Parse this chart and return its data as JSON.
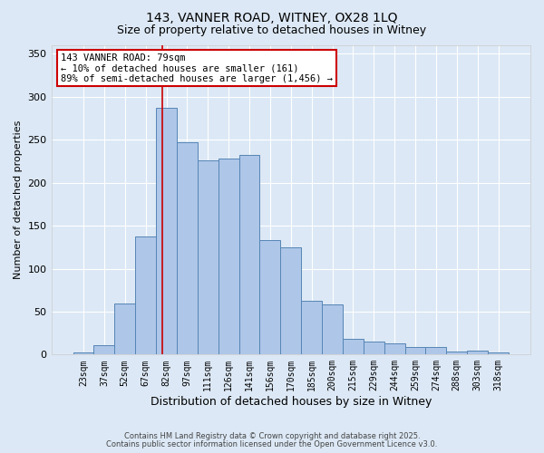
{
  "title1": "143, VANNER ROAD, WITNEY, OX28 1LQ",
  "title2": "Size of property relative to detached houses in Witney",
  "xlabel": "Distribution of detached houses by size in Witney",
  "ylabel": "Number of detached properties",
  "bar_labels": [
    "23sqm",
    "37sqm",
    "52sqm",
    "67sqm",
    "82sqm",
    "97sqm",
    "111sqm",
    "126sqm",
    "141sqm",
    "156sqm",
    "170sqm",
    "185sqm",
    "200sqm",
    "215sqm",
    "229sqm",
    "244sqm",
    "259sqm",
    "274sqm",
    "288sqm",
    "303sqm",
    "318sqm"
  ],
  "bar_values": [
    2,
    11,
    59,
    137,
    287,
    247,
    226,
    228,
    232,
    133,
    125,
    63,
    58,
    18,
    15,
    13,
    9,
    9,
    4,
    5,
    2
  ],
  "bar_color": "#aec6e8",
  "bar_edgecolor": "#5585b5",
  "background_color": "#dce8f5",
  "vline_x_index": 3.82,
  "vline_color": "#cc0000",
  "annotation_line1": "143 VANNER ROAD: 79sqm",
  "annotation_line2": "← 10% of detached houses are smaller (161)",
  "annotation_line3": "89% of semi-detached houses are larger (1,456) →",
  "annotation_box_facecolor": "#ffffff",
  "annotation_box_edgecolor": "#cc0000",
  "ylim": [
    0,
    360
  ],
  "yticks": [
    0,
    50,
    100,
    150,
    200,
    250,
    300,
    350
  ],
  "footer1": "Contains HM Land Registry data © Crown copyright and database right 2025.",
  "footer2": "Contains public sector information licensed under the Open Government Licence v3.0."
}
